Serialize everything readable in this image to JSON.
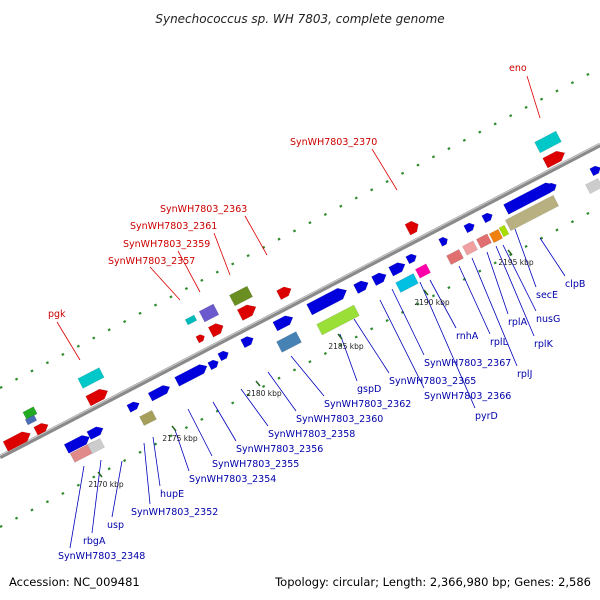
{
  "title": "Synechococcus sp. WH 7803, complete genome",
  "footer": {
    "accession": "Accession: NC_009481",
    "summary": "Topology: circular; Length: 2,366,980 bp; Genes: 2,586"
  },
  "colors": {
    "backbone": "#8a8a8a",
    "label_upper_strand": "#dd0000",
    "label_lower_strand": "#0000bb",
    "tick_green": "#228822"
  },
  "scale_labels": [
    "2170 kbp",
    "2175 kbp",
    "2180 kbp",
    "2185 kbp",
    "2190 kbp",
    "2195 kbp"
  ],
  "upper_labels": [
    "pgk",
    "SynWH7803_2357",
    "SynWH7803_2359",
    "SynWH7803_2361",
    "SynWH7803_2363",
    "SynWH7803_2370",
    "eno"
  ],
  "lower_labels": [
    "SynWH7803_2348",
    "rbgA",
    "usp",
    "hupE",
    "SynWH7803_2352",
    "SynWH7803_2354",
    "SynWH7803_2355",
    "SynWH7803_2356",
    "SynWH7803_2358",
    "SynWH7803_2360",
    "SynWH7803_2362",
    "gspD",
    "SynWH7803_2365",
    "SynWH7803_2366",
    "SynWH7803_2367",
    "pyrD",
    "rnhA",
    "rplL",
    "rplJ",
    "rplA",
    "rplK",
    "nusG",
    "secE",
    "clpB"
  ]
}
